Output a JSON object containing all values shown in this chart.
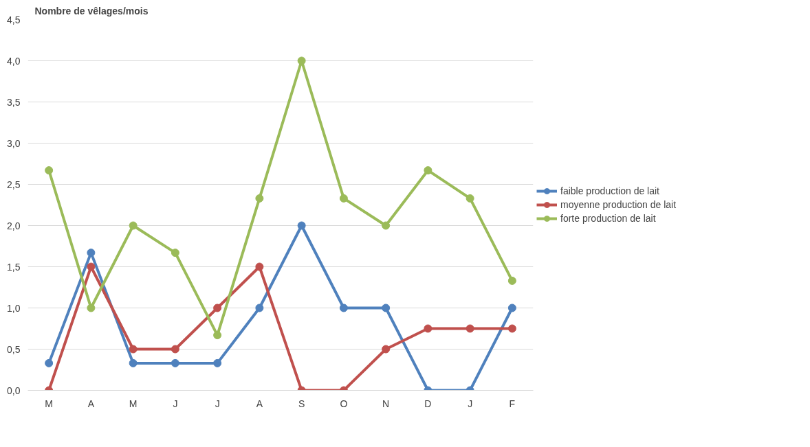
{
  "chart_data": {
    "type": "line",
    "ylabel": "Nombre de vêlages/mois",
    "categories": [
      "M",
      "A",
      "M",
      "J",
      "J",
      "A",
      "S",
      "O",
      "N",
      "D",
      "J",
      "F"
    ],
    "series": [
      {
        "name": "faible production de lait",
        "color": "#4f81bd",
        "values": [
          0.33,
          1.67,
          0.33,
          0.33,
          0.33,
          1,
          2,
          1,
          1,
          0,
          0,
          1
        ]
      },
      {
        "name": "moyenne production de lait",
        "color": "#c0504d",
        "values": [
          0,
          1.5,
          0.5,
          0.5,
          1,
          1.5,
          0,
          0,
          0.5,
          0.75,
          0.75,
          0.75
        ]
      },
      {
        "name": "forte production de lait",
        "color": "#9bbb59",
        "values": [
          2.67,
          1,
          2,
          1.67,
          0.67,
          2.33,
          4,
          2.33,
          2,
          2.67,
          2.33,
          1.33
        ]
      }
    ],
    "ylim": [
      0,
      4.5
    ],
    "yticks": [
      {
        "value": 0,
        "label": "0,0"
      },
      {
        "value": 0.5,
        "label": "0,5"
      },
      {
        "value": 1,
        "label": "1,0"
      },
      {
        "value": 1.5,
        "label": "1,5"
      },
      {
        "value": 2,
        "label": "2,0"
      },
      {
        "value": 2.5,
        "label": "2,5"
      },
      {
        "value": 3,
        "label": "3,0"
      },
      {
        "value": 3.5,
        "label": "3,5"
      },
      {
        "value": 4,
        "label": "4,0"
      },
      {
        "value": 4.5,
        "label": "4,5"
      }
    ],
    "grid": "y",
    "legend": "right",
    "marker": "circle",
    "line_style": "solid"
  }
}
